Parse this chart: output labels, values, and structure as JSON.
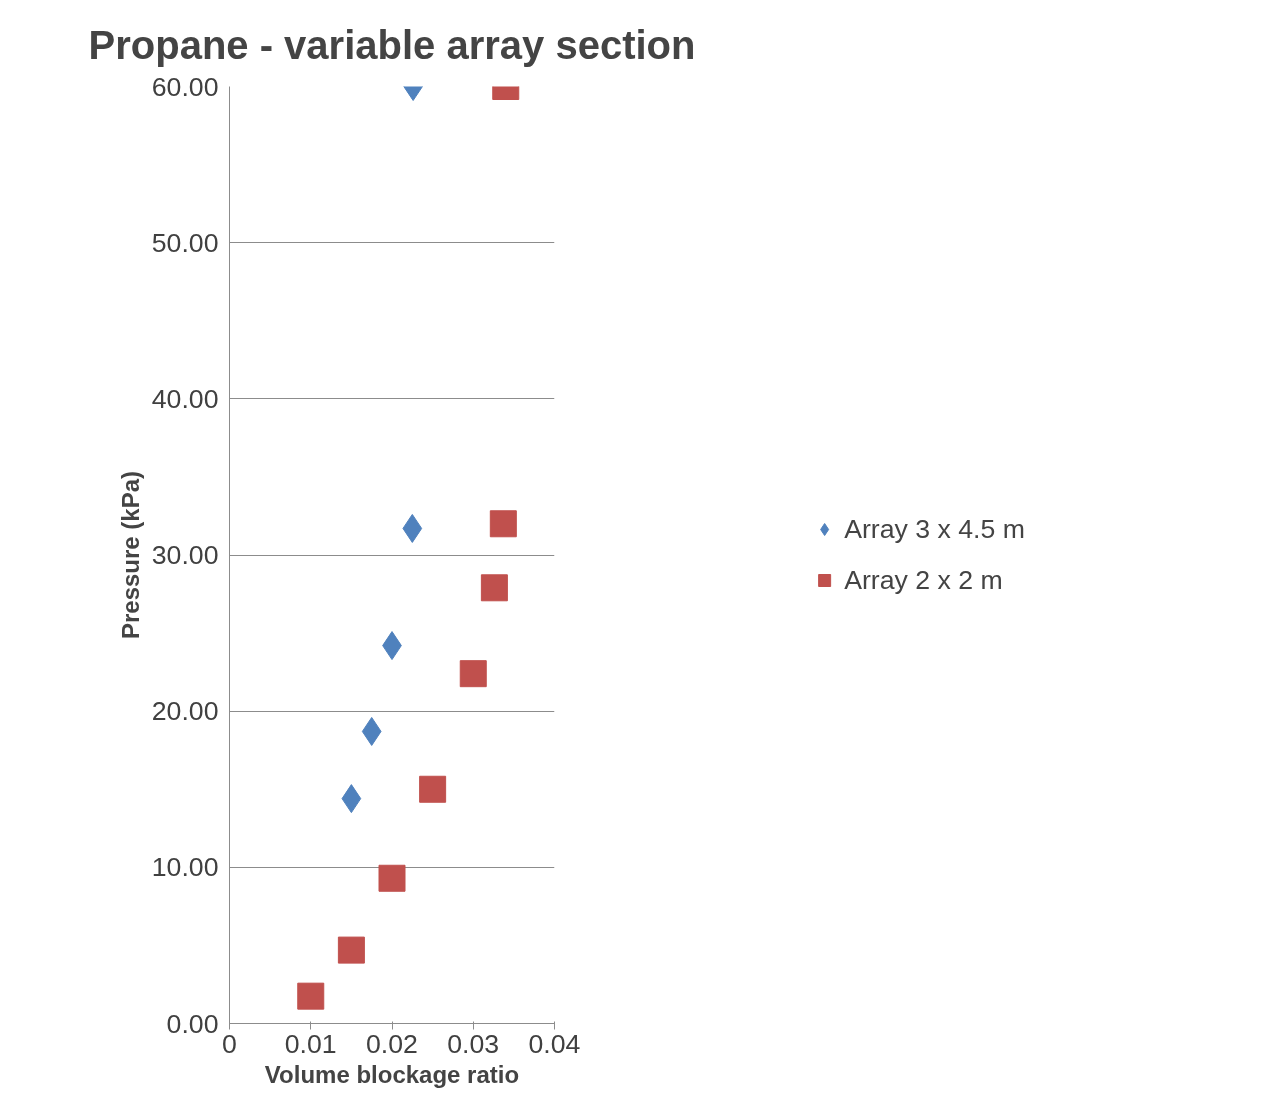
{
  "chart_data": {
    "type": "scatter",
    "title": "Propane - variable array section",
    "xlabel": "Volume blockage ratio",
    "ylabel": "Pressure (kPa)",
    "xlim": [
      0,
      0.04
    ],
    "xticks": [
      0,
      0.01,
      0.02,
      0.03,
      0.04
    ],
    "ylim": [
      0,
      60
    ],
    "yticks": [
      {
        "value": 0,
        "label": "0.00"
      },
      {
        "value": 10,
        "label": "10.00"
      },
      {
        "value": 20,
        "label": "20.00"
      },
      {
        "value": 30,
        "label": "30.00"
      },
      {
        "value": 40,
        "label": "40.00"
      },
      {
        "value": 50,
        "label": "50.00"
      },
      {
        "value": 60,
        "label": "60.00"
      }
    ],
    "grid": "y",
    "legend": "right",
    "series": [
      {
        "name": "Array 3 x 4.5 m",
        "color": "#4f81bd",
        "marker": "diamond",
        "x": [
          0.015,
          0.0175,
          0.02,
          0.0225,
          0.0226
        ],
        "values": [
          14.4,
          18.7,
          24.2,
          31.7,
          60
        ]
      },
      {
        "name": "Array 2 x 2 m",
        "color": "#c0504d",
        "marker": "square",
        "x": [
          0.01,
          0.015,
          0.02,
          0.025,
          0.03,
          0.0326,
          0.0337,
          0.034
        ],
        "values": [
          1.75,
          4.7,
          9.3,
          15.0,
          22.4,
          27.9,
          32.0,
          60
        ]
      }
    ]
  }
}
